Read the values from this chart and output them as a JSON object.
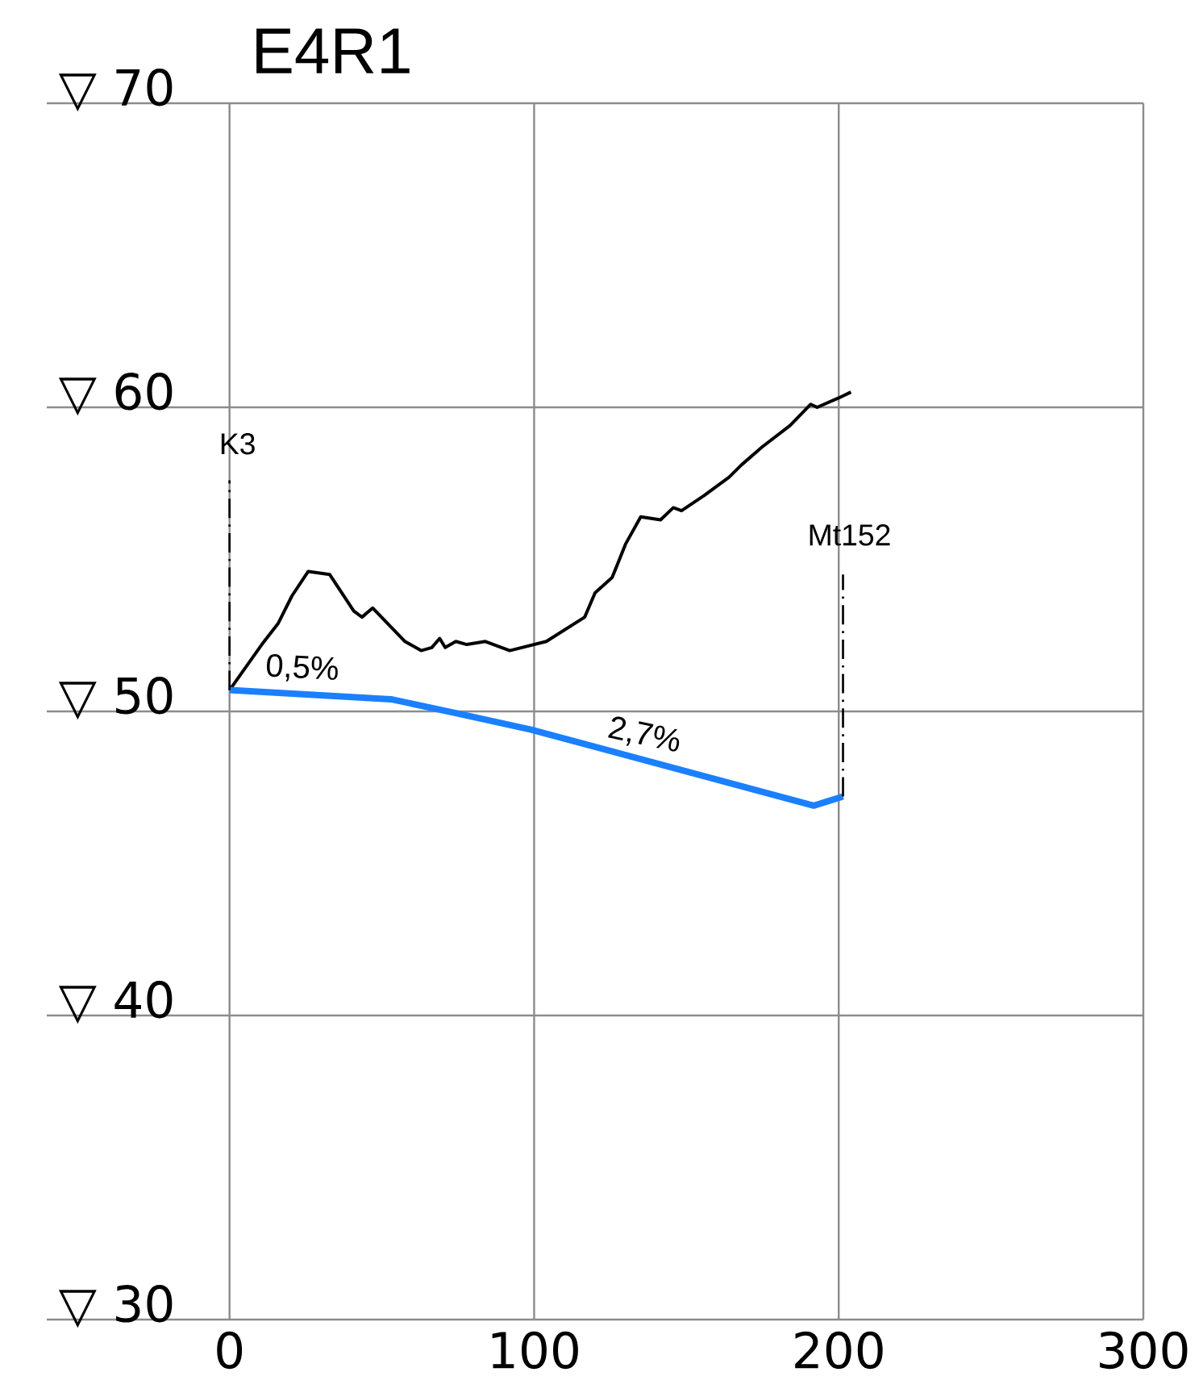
{
  "chart_data": {
    "type": "line",
    "title": "E4R1",
    "series": [
      {
        "color": "#000000",
        "x": [
          0,
          10.6,
          16,
          20.5,
          25.8,
          32.9,
          40.8,
          43.5,
          47,
          57.6,
          62.9,
          66.4,
          69,
          70.8,
          74.3,
          77.9,
          84,
          92,
          104,
          116.6,
          120,
          125.6,
          130,
          135,
          141.5,
          145.7,
          148.4,
          155.8,
          164,
          168,
          174.9,
          184,
          190.8,
          192.9,
          199.8,
          204
        ],
        "values": [
          50.7,
          52.2,
          52.9,
          53.8,
          54.6,
          54.5,
          53.3,
          53.1,
          53.4,
          52.3,
          52.0,
          52.1,
          52.4,
          52.1,
          52.3,
          52.2,
          52.3,
          52.0,
          52.3,
          53.1,
          53.9,
          54.4,
          55.5,
          56.4,
          56.3,
          56.7,
          56.6,
          57.1,
          57.7,
          58.1,
          58.7,
          59.4,
          60.1,
          60.0,
          60.3,
          60.5
        ]
      },
      {
        "color": "#1a80ff",
        "x": [
          0,
          53,
          74,
          99,
          191.8,
          201.4
        ],
        "values": [
          50.7,
          50.4,
          49.95,
          49.4,
          46.9,
          47.2
        ]
      },
      {
        "color": "#000000",
        "line_style": "dashed",
        "x": [
          0,
          0
        ],
        "values": [
          50.7,
          57.6
        ]
      },
      {
        "color": "#000000",
        "line_style": "dashed",
        "x": [
          201.4,
          201.4
        ],
        "values": [
          47.2,
          54.5
        ]
      }
    ],
    "xlim": [
      -60,
      300
    ],
    "ylim": [
      30,
      70
    ],
    "xticks": [
      0,
      100,
      200,
      300
    ],
    "yticks": [
      {
        "value": 30,
        "label": "▽ 30"
      },
      {
        "value": 40,
        "label": "▽ 40"
      },
      {
        "value": 50,
        "label": "▽ 50"
      },
      {
        "value": 60,
        "label": "▽ 60"
      },
      {
        "value": 70,
        "label": "▽ 70"
      }
    ],
    "grid": true,
    "line_style": "solid",
    "marker": "none",
    "annotations": [
      "K3",
      "Mt152",
      "0,5%",
      "2,7%"
    ]
  }
}
